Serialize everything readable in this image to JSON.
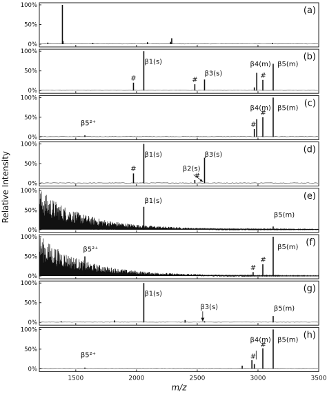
{
  "chart_data": {
    "type": "line",
    "xlabel": "m/z",
    "ylabel": "Relative Intensity",
    "xlim": [
      1200,
      3500
    ],
    "x_ticks": [
      1500,
      2000,
      2500,
      3000,
      3500
    ],
    "y_ticks": [
      "0%",
      "50%",
      "100%"
    ],
    "ylim": [
      0,
      100
    ],
    "grid": false,
    "panels": [
      {
        "label": "(a)",
        "baseline_noise": "low",
        "peaks": [
          {
            "x": 1390,
            "y": 100
          },
          {
            "x": 1395,
            "y": 8
          },
          {
            "x": 1270,
            "y": 4
          },
          {
            "x": 1640,
            "y": 3
          },
          {
            "x": 2090,
            "y": 5
          },
          {
            "x": 2290,
            "y": 15
          },
          {
            "x": 2280,
            "y": 6
          },
          {
            "x": 3120,
            "y": 3
          }
        ],
        "annotations": []
      },
      {
        "label": "(b)",
        "baseline_noise": "low",
        "peaks": [
          {
            "x": 1975,
            "y": 20
          },
          {
            "x": 2060,
            "y": 100
          },
          {
            "x": 2480,
            "y": 16
          },
          {
            "x": 2560,
            "y": 28
          },
          {
            "x": 2970,
            "y": 8
          },
          {
            "x": 2990,
            "y": 45
          },
          {
            "x": 3040,
            "y": 27
          },
          {
            "x": 3125,
            "y": 68
          }
        ],
        "annotations": [
          {
            "text": "#",
            "x": 1975,
            "y": 26
          },
          {
            "text": "β1(s)",
            "x": 2065,
            "y": 68
          },
          {
            "text": "#",
            "x": 2480,
            "y": 22
          },
          {
            "text": "β3(s)",
            "x": 2560,
            "y": 38
          },
          {
            "text": "β4(m)",
            "x": 2935,
            "y": 62
          },
          {
            "text": "#",
            "x": 3043,
            "y": 33
          },
          {
            "text": "β5(m)",
            "x": 3160,
            "y": 62
          }
        ]
      },
      {
        "label": "(c)",
        "baseline_noise": "low",
        "peaks": [
          {
            "x": 1575,
            "y": 4
          },
          {
            "x": 2970,
            "y": 20
          },
          {
            "x": 2990,
            "y": 45
          },
          {
            "x": 3040,
            "y": 50
          },
          {
            "x": 3125,
            "y": 100
          }
        ],
        "annotations": [
          {
            "text": "β5²⁺",
            "x": 1540,
            "y": 30
          },
          {
            "text": "β4(m)",
            "x": 2935,
            "y": 68
          },
          {
            "text": "#",
            "x": 2963,
            "y": 26
          },
          {
            "text": "#",
            "x": 3043,
            "y": 56
          },
          {
            "text": "β5(m)",
            "x": 3160,
            "y": 68
          }
        ]
      },
      {
        "label": "(d)",
        "baseline_noise": "low",
        "peaks": [
          {
            "x": 1975,
            "y": 25
          },
          {
            "x": 2060,
            "y": 100
          },
          {
            "x": 2480,
            "y": 8
          },
          {
            "x": 2560,
            "y": 65
          }
        ],
        "annotations": [
          {
            "text": "#",
            "x": 1975,
            "y": 32
          },
          {
            "text": "β1(s)",
            "x": 2065,
            "y": 68
          },
          {
            "text": "β2(s)",
            "x": 2380,
            "y": 32
          },
          {
            "text": "#",
            "x": 2500,
            "y": 14
          },
          {
            "text": "β3(s)",
            "x": 2560,
            "y": 68
          }
        ]
      },
      {
        "label": "(e)",
        "baseline_noise": "high-low-mass",
        "peaks": [
          {
            "x": 2060,
            "y": 58
          },
          {
            "x": 3125,
            "y": 8
          }
        ],
        "annotations": [
          {
            "text": "β1(s)",
            "x": 2065,
            "y": 68
          },
          {
            "text": "β5(m)",
            "x": 3130,
            "y": 32
          }
        ]
      },
      {
        "label": "(f)",
        "baseline_noise": "high-low-mass",
        "peaks": [
          {
            "x": 1575,
            "y": 50
          },
          {
            "x": 2960,
            "y": 10
          },
          {
            "x": 3040,
            "y": 30
          },
          {
            "x": 3125,
            "y": 100
          }
        ],
        "annotations": [
          {
            "text": "β5²⁺",
            "x": 1560,
            "y": 62
          },
          {
            "text": "#",
            "x": 2960,
            "y": 16
          },
          {
            "text": "#",
            "x": 3043,
            "y": 36
          },
          {
            "text": "β5(m)",
            "x": 3160,
            "y": 68
          }
        ]
      },
      {
        "label": "(g)",
        "baseline_noise": "low",
        "peaks": [
          {
            "x": 1380,
            "y": 3
          },
          {
            "x": 1820,
            "y": 5
          },
          {
            "x": 2060,
            "y": 100
          },
          {
            "x": 2400,
            "y": 6
          },
          {
            "x": 2560,
            "y": 3
          },
          {
            "x": 3125,
            "y": 16
          }
        ],
        "annotations": [
          {
            "text": "β1(s)",
            "x": 2065,
            "y": 68
          },
          {
            "text": "β3(s)",
            "x": 2525,
            "y": 34
          },
          {
            "text": "β5(m)",
            "x": 3130,
            "y": 30
          }
        ]
      },
      {
        "label": "(h)",
        "baseline_noise": "low",
        "peaks": [
          {
            "x": 1575,
            "y": 3
          },
          {
            "x": 2870,
            "y": 8
          },
          {
            "x": 2950,
            "y": 22
          },
          {
            "x": 2970,
            "y": 12
          },
          {
            "x": 3040,
            "y": 52
          },
          {
            "x": 3125,
            "y": 100
          }
        ],
        "annotations": [
          {
            "text": "β5²⁺",
            "x": 1540,
            "y": 30
          },
          {
            "text": "β4(m)",
            "x": 2935,
            "y": 68
          },
          {
            "text": "#",
            "x": 2960,
            "y": 26
          },
          {
            "text": "#",
            "x": 3043,
            "y": 56
          },
          {
            "text": "β5(m)",
            "x": 3160,
            "y": 68
          }
        ]
      }
    ]
  }
}
